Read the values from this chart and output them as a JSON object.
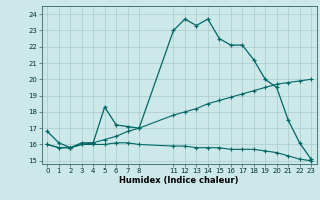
{
  "title": "",
  "xlabel": "Humidex (Indice chaleur)",
  "bg_color": "#cde8e8",
  "grid_color": "#aacccc",
  "line_color": "#006666",
  "xlim": [
    -0.5,
    23.5
  ],
  "ylim": [
    14.8,
    24.5
  ],
  "xticks": [
    0,
    1,
    2,
    3,
    4,
    5,
    6,
    7,
    8,
    11,
    12,
    13,
    14,
    15,
    16,
    17,
    18,
    19,
    20,
    21,
    22,
    23
  ],
  "yticks": [
    15,
    16,
    17,
    18,
    19,
    20,
    21,
    22,
    23,
    24
  ],
  "line1_x": [
    0,
    1,
    2,
    3,
    4,
    5,
    6,
    7,
    8,
    11,
    12,
    13,
    14,
    15,
    16,
    17,
    18,
    19,
    20,
    21,
    22,
    23
  ],
  "line1_y": [
    16.8,
    16.1,
    15.8,
    16.1,
    16.1,
    18.3,
    17.2,
    17.1,
    17.0,
    23.0,
    23.7,
    23.3,
    23.7,
    22.5,
    22.1,
    22.1,
    21.2,
    20.0,
    19.5,
    17.5,
    16.1,
    15.1
  ],
  "line2_x": [
    0,
    1,
    2,
    3,
    4,
    5,
    6,
    7,
    8,
    11,
    12,
    13,
    14,
    15,
    16,
    17,
    18,
    19,
    20,
    21,
    22,
    23
  ],
  "line2_y": [
    16.0,
    15.8,
    15.8,
    16.0,
    16.0,
    16.0,
    16.1,
    16.1,
    16.0,
    15.9,
    15.9,
    15.8,
    15.8,
    15.8,
    15.7,
    15.7,
    15.7,
    15.6,
    15.5,
    15.3,
    15.1,
    15.0
  ],
  "line3_x": [
    0,
    1,
    2,
    3,
    4,
    5,
    6,
    7,
    8,
    11,
    12,
    13,
    14,
    15,
    16,
    17,
    18,
    19,
    20,
    21,
    22,
    23
  ],
  "line3_y": [
    16.0,
    15.8,
    15.8,
    16.0,
    16.1,
    16.3,
    16.5,
    16.8,
    17.0,
    17.8,
    18.0,
    18.2,
    18.5,
    18.7,
    18.9,
    19.1,
    19.3,
    19.5,
    19.7,
    19.8,
    19.9,
    20.0
  ]
}
